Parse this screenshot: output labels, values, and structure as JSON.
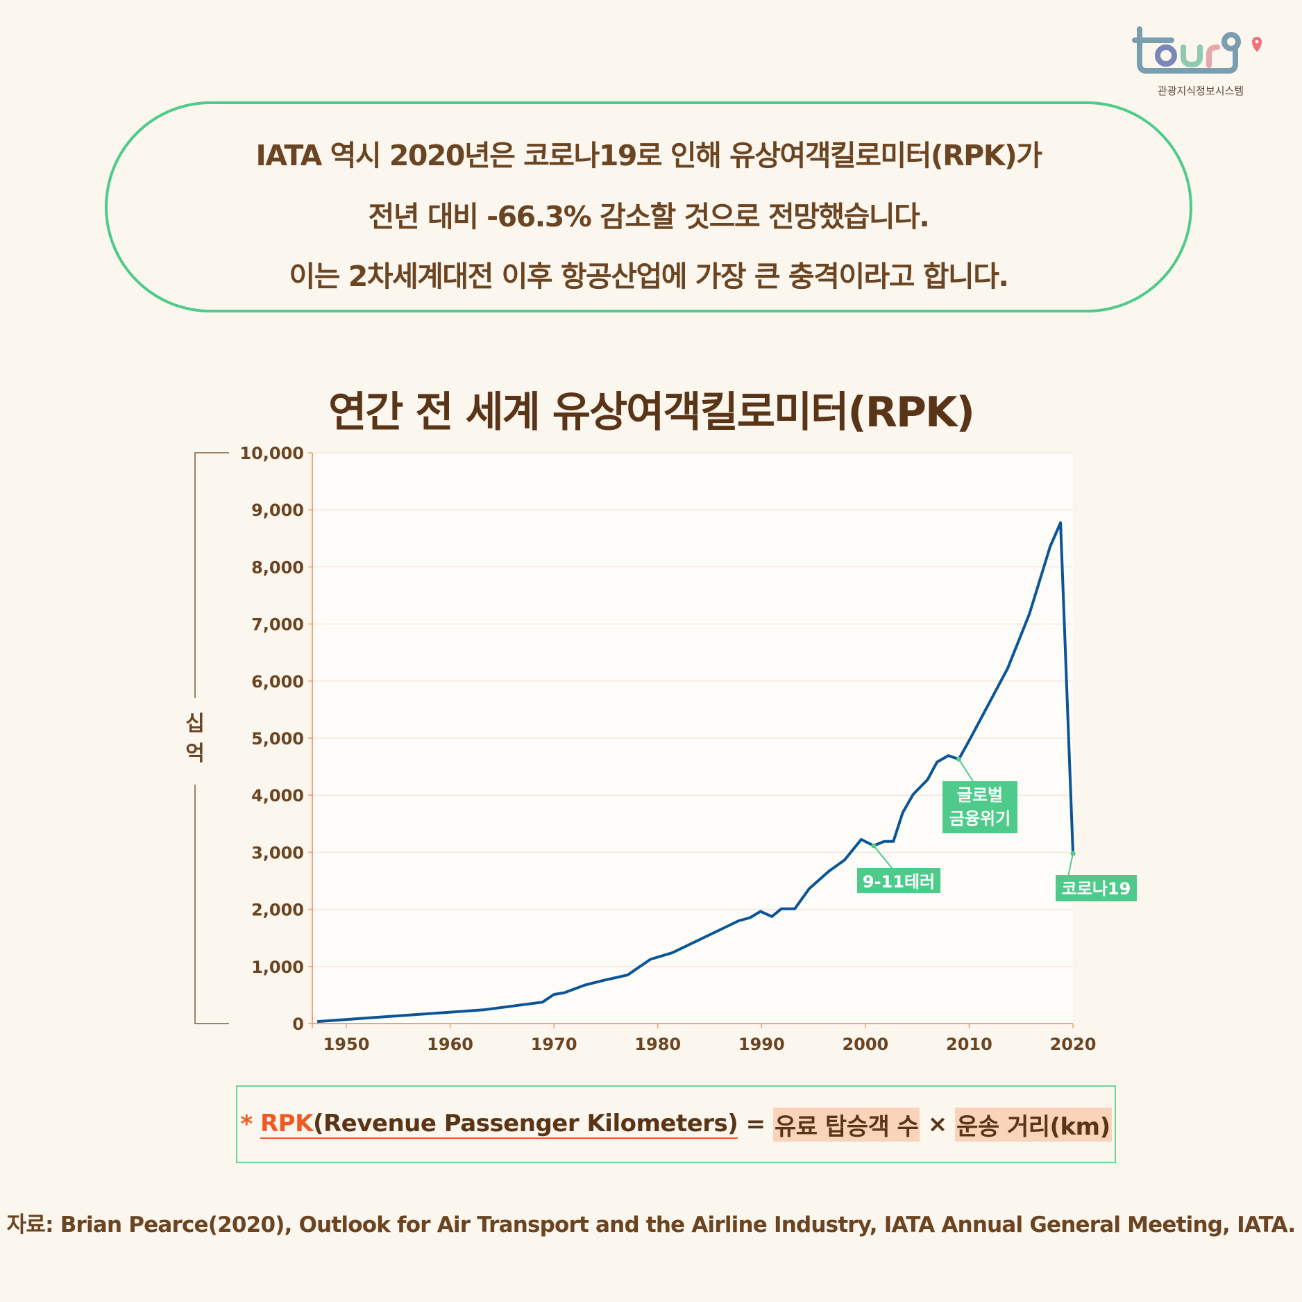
{
  "logo": {
    "text": "tour9",
    "subtitle": "관광지식정보시스템",
    "colors": {
      "t": "#7a9db0",
      "o": "#7a86b8",
      "u": "#8fcab0",
      "r": "#e7a8ab",
      "pin": "#f0707a"
    }
  },
  "callout": {
    "lines": [
      "IATA 역시 2020년은 코로나19로 인해 유상여객킬로미터(RPK)가",
      "전년 대비 -66.3% 감소할 것으로 전망했습니다.",
      "이는 2차세계대전 이후 항공산업에 가장 큰 충격이라고 합니다."
    ],
    "border_color": "#4ecb8a"
  },
  "chart_data": {
    "type": "line",
    "title": "연간 전 세계 유상여객킬로미터(RPK)",
    "ylabel": "십억",
    "xlabel": "",
    "ylim": [
      0,
      10000
    ],
    "xlim": [
      1947,
      2020
    ],
    "yticks": [
      "0",
      "1,000",
      "2,000",
      "3,000",
      "4,000",
      "5,000",
      "6,000",
      "7,000",
      "8,000",
      "9,000",
      "10,000"
    ],
    "xticks": [
      "1950",
      "1960",
      "1970",
      "1980",
      "1990",
      "2000",
      "2010",
      "2020"
    ],
    "grid": true,
    "line_color": "#0b5597",
    "annotation_color": "#4ecb8a",
    "x": [
      1947.2,
      1963.2,
      1968.9,
      1970,
      1971,
      1973,
      1975,
      1977.1,
      1979.3,
      1981.4,
      1987.8,
      1988.9,
      1989.9,
      1991,
      1991.9,
      1993.2,
      1994.6,
      1996.5,
      1998,
      1999.6,
      2000.8,
      2001.8,
      2002.7,
      2003.6,
      2004.6,
      2006,
      2006.9,
      2008,
      2009,
      2010.1,
      2013.7,
      2015.8,
      2017.8,
      2018.8,
      2020
    ],
    "y": [
      35,
      240,
      375,
      510,
      540,
      675,
      765,
      850,
      1125,
      1240,
      1800,
      1855,
      1965,
      1875,
      2010,
      2010,
      2365,
      2670,
      2865,
      3225,
      3115,
      3190,
      3190,
      3695,
      4015,
      4275,
      4580,
      4695,
      4630,
      4990,
      6220,
      7175,
      8355,
      8775,
      2980
    ],
    "annotations": [
      {
        "label": "9-11테러",
        "x": 2000.8,
        "y": 3115
      },
      {
        "label_lines": [
          "글로벌",
          "금융위기"
        ],
        "x": 2009,
        "y": 4630
      },
      {
        "label": "코로나19",
        "x": 2020,
        "y": 2980
      }
    ]
  },
  "definition": {
    "asterisk": "*",
    "term": "RPK",
    "expansion": "(Revenue Passenger Kilometers)",
    "equals": "=",
    "factor1": "유료 탑승객 수",
    "times": "×",
    "factor2": "운송 거리(km)"
  },
  "source": "자료: Brian Pearce(2020), Outlook for Air Transport and the Airline Industry, IATA Annual General Meeting, IATA."
}
